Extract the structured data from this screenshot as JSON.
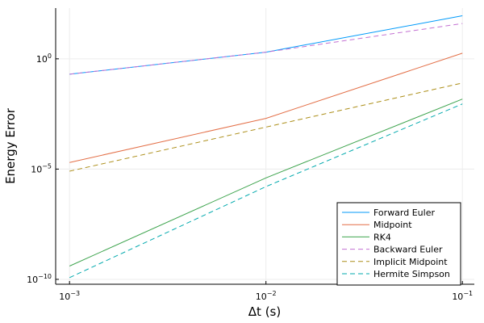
{
  "chart_data": {
    "type": "line",
    "xscale": "log",
    "yscale": "log",
    "xlabel": "Δt (s)",
    "ylabel": "Energy Error",
    "xlim": [
      0.00085,
      0.115
    ],
    "ylim": [
      6e-11,
      200
    ],
    "x_ticks": [
      {
        "value": 0.001,
        "base": "10",
        "exp": "−3"
      },
      {
        "value": 0.01,
        "base": "10",
        "exp": "−2"
      },
      {
        "value": 0.1,
        "base": "10",
        "exp": "−1"
      }
    ],
    "y_ticks": [
      {
        "value": 1e-10,
        "base": "10",
        "exp": "−10"
      },
      {
        "value": 1e-05,
        "base": "10",
        "exp": "−5"
      },
      {
        "value": 1,
        "base": "10",
        "exp": "0"
      }
    ],
    "grid": true,
    "legend_position": "bottom-right",
    "x": [
      0.001,
      0.01,
      0.1
    ],
    "series": [
      {
        "name": "Forward Euler",
        "color": "#009AFA",
        "dash": "solid",
        "values": [
          0.2,
          2.0,
          90
        ]
      },
      {
        "name": "Midpoint",
        "color": "#E36F47",
        "dash": "solid",
        "values": [
          2e-05,
          0.002,
          1.8
        ]
      },
      {
        "name": "RK4",
        "color": "#3EA44E",
        "dash": "solid",
        "values": [
          4e-10,
          4e-06,
          0.015
        ]
      },
      {
        "name": "Backward Euler",
        "color": "#C371D2",
        "dash": "dashed",
        "values": [
          0.2,
          2.0,
          40
        ]
      },
      {
        "name": "Implicit Midpoint",
        "color": "#AC8E18",
        "dash": "dashed",
        "values": [
          8e-06,
          0.0008,
          0.08
        ]
      },
      {
        "name": "Hermite Simpson",
        "color": "#00A9AD",
        "dash": "dashed",
        "values": [
          1.2e-10,
          1.6e-06,
          0.009
        ]
      }
    ]
  }
}
